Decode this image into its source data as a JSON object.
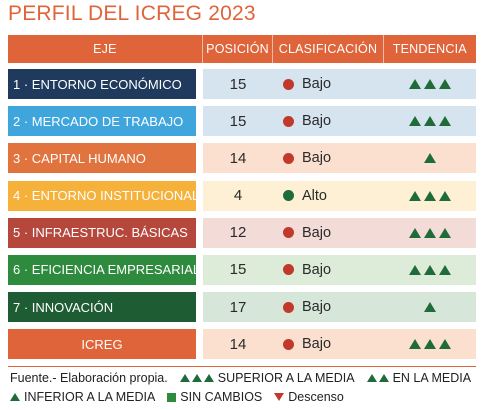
{
  "title": "PERFIL DEL ICREG 2023",
  "header": {
    "eje": "EJE",
    "posicion": "POSICIÓN",
    "clasificacion": "CLASIFICACIÓN",
    "tendencia": "TENDENCIA"
  },
  "rows": [
    {
      "label": "1 · ENTORNO ECONÓMICO",
      "posicion": "15",
      "clasificacion": "Bajo",
      "tendencia": 3,
      "color": "#1f3a5c",
      "cell_bg": "#d6e4f0",
      "dot": "#c0392b"
    },
    {
      "label": "2 ·  MERCADO DE TRABAJO",
      "posicion": "15",
      "clasificacion": "Bajo",
      "tendencia": 3,
      "color": "#3ea6dd",
      "cell_bg": "#d6e4f0",
      "dot": "#c0392b"
    },
    {
      "label": "3 · CAPITAL HUMANO",
      "posicion": "14",
      "clasificacion": "Bajo",
      "tendencia": 1,
      "color": "#e0733e",
      "cell_bg": "#fbe0d0",
      "dot": "#c0392b"
    },
    {
      "label": "4 · ENTORNO INSTITUCIONAL",
      "posicion": "4",
      "clasificacion": "Alto",
      "tendencia": 3,
      "color": "#f6b13b",
      "cell_bg": "#fdf0d4",
      "dot": "#1f6b3a"
    },
    {
      "label": "5 · INFRAESTRUC. BÁSICAS",
      "posicion": "12",
      "clasificacion": "Bajo",
      "tendencia": 3,
      "color": "#b5473d",
      "cell_bg": "#f3dcd8",
      "dot": "#c0392b"
    },
    {
      "label": "6 · EFICIENCIA EMPRESARIAL",
      "posicion": "15",
      "clasificacion": "Bajo",
      "tendencia": 3,
      "color": "#2e8b3e",
      "cell_bg": "#dcecd8",
      "dot": "#c0392b"
    },
    {
      "label": "7 · INNOVACIÓN",
      "posicion": "17",
      "clasificacion": "Bajo",
      "tendencia": 1,
      "color": "#1e5c33",
      "cell_bg": "#d6e6d8",
      "dot": "#c0392b"
    },
    {
      "label": "ICREG",
      "posicion": "14",
      "clasificacion": "Bajo",
      "tendencia": 3,
      "color": "#e0643a",
      "cell_bg": "#fbe0d0",
      "dot": "#c0392b"
    }
  ],
  "legend": {
    "source": "Fuente.- Elaboración propia.",
    "superior": "SUPERIOR A LA MEDIA",
    "en_media": "EN LA MEDIA",
    "inferior": "INFERIOR A LA MEDIA",
    "sin_cambios": "SIN CAMBIOS",
    "descenso": "Descenso"
  },
  "colors": {
    "accent": "#e0643a",
    "trend_up": "#1f6b3a",
    "trend_down": "#c0392b",
    "unchanged": "#2e8b3e"
  }
}
